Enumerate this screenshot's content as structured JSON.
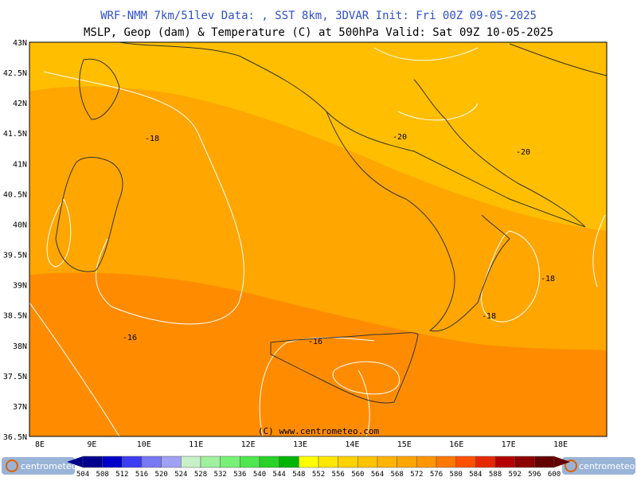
{
  "header": {
    "line1": "WRF-NMM 7km/51lev  Data: , SST 8km, 3DVAR  Init: Fri 00Z 09-05-2025",
    "line2": "MSLP, Geop (dam) & Temperature (C) at 500hPa  Valid: Sat 09Z 10-05-2025"
  },
  "lat_labels": [
    "43N",
    "42.5N",
    "42N",
    "41.5N",
    "41N",
    "40.5N",
    "40N",
    "39.5N",
    "39N",
    "38.5N",
    "38N",
    "37.5N",
    "37N",
    "36.5N"
  ],
  "lon_labels": [
    "8E",
    "9E",
    "10E",
    "11E",
    "12E",
    "13E",
    "14E",
    "15E",
    "16E",
    "17E",
    "18E"
  ],
  "contour_labels": [
    "-18",
    "-20",
    "-20",
    "-18",
    "-18",
    "-16",
    "-16"
  ],
  "copyright": "(C) www.centrometeo.com",
  "colorbar": {
    "labels": [
      504,
      508,
      512,
      516,
      520,
      524,
      528,
      532,
      536,
      540,
      544,
      548,
      552,
      556,
      560,
      564,
      568,
      572,
      576,
      580,
      584,
      588,
      592,
      596,
      600
    ],
    "colors": [
      "#00008c",
      "#0000c8",
      "#3c3cf0",
      "#7878f5",
      "#a0a0f5",
      "#c8f0c8",
      "#a0f0a0",
      "#78f078",
      "#50e650",
      "#28d228",
      "#00b400",
      "#ffff00",
      "#ffe600",
      "#ffd200",
      "#ffc300",
      "#ffb400",
      "#ffa500",
      "#ff9600",
      "#ff7800",
      "#ff5000",
      "#e62800",
      "#b40000",
      "#8c0000",
      "#640000"
    ]
  },
  "logo": "centrometeo"
}
